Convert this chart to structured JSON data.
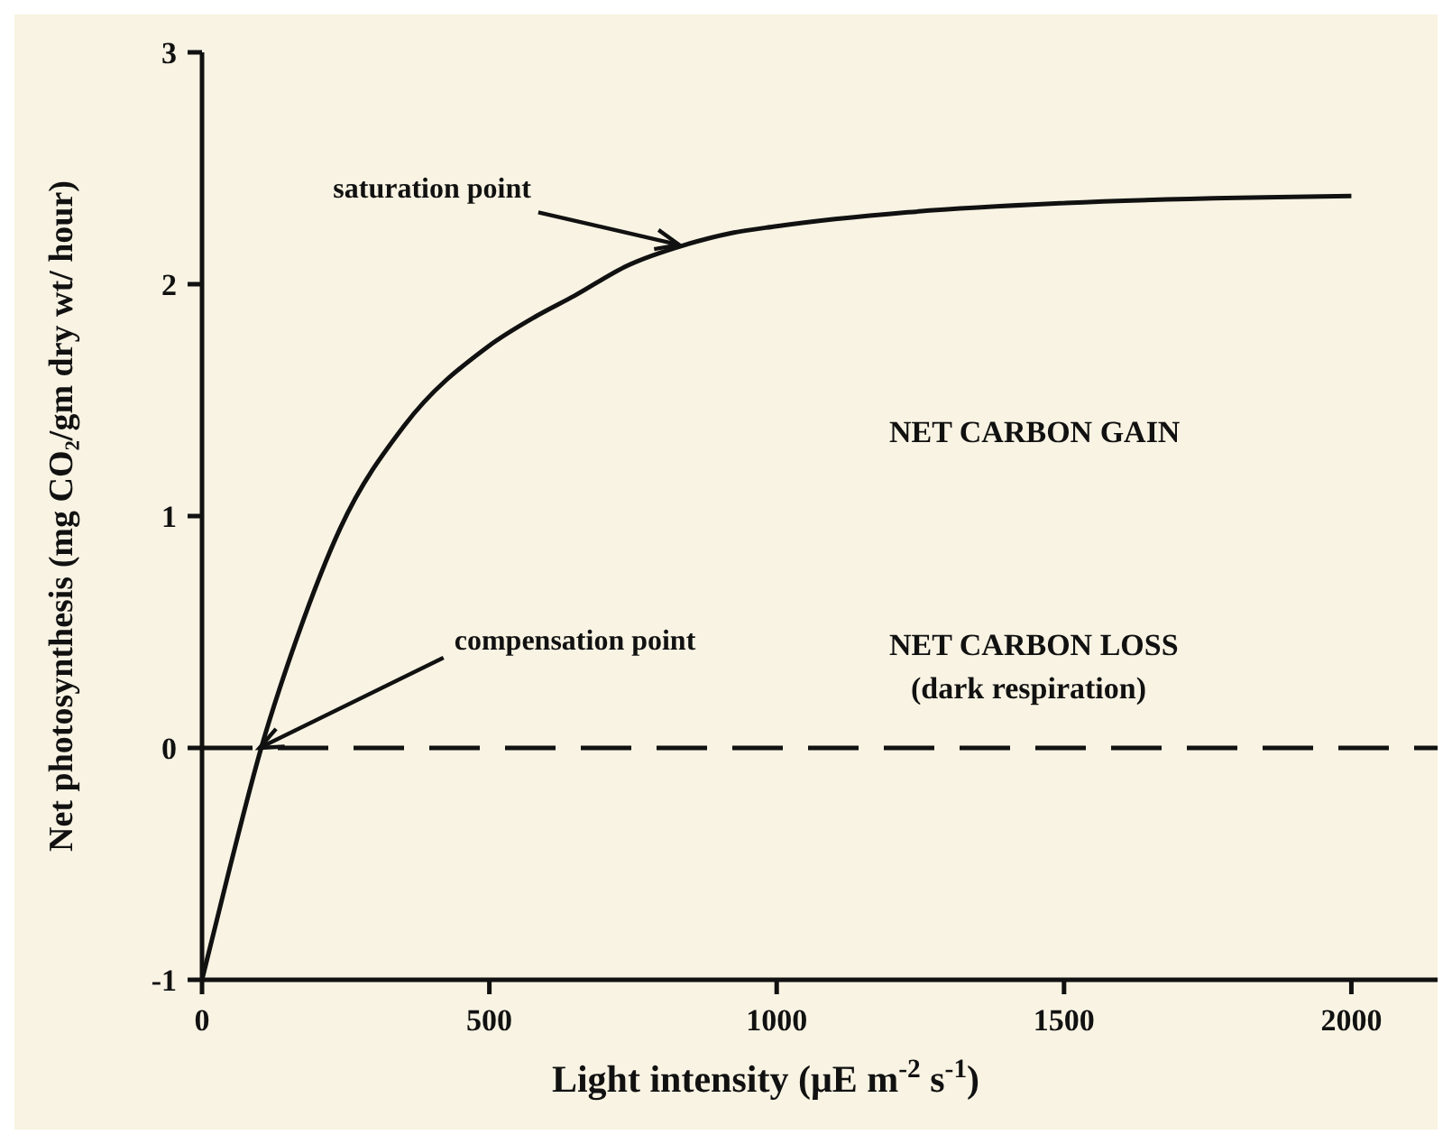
{
  "chart_data": {
    "type": "line",
    "xlabel": "Light intensity (μE m$^{-2}$ s$^{-1}$)",
    "ylabel": "Net photosynthesis (mg CO₂/gm dry wt/ hour)",
    "x": [
      0,
      48,
      103,
      166,
      241,
      352,
      497,
      580,
      648,
      740,
      841,
      920,
      1000,
      1228,
      1503,
      2000
    ],
    "series": [
      {
        "color": "#111111",
        "values": [
          -1,
          -0.52,
          0,
          0.48,
          0.95,
          1.39,
          1.73,
          1.86,
          1.95,
          2.08,
          2.17,
          2.22,
          2.25,
          2.31,
          2.35,
          2.38
        ]
      }
    ],
    "xlim": [
      0,
      2150
    ],
    "xticks": [
      0,
      500,
      1000,
      1500,
      2000
    ],
    "ylim": [
      -1,
      3
    ],
    "yticks": [
      -1,
      0,
      1,
      2,
      3
    ],
    "ref_lines": [
      {
        "axis": "y",
        "value": 0,
        "line_style": "dashed",
        "color": "#111111"
      }
    ],
    "annotations": [
      {
        "text": "saturation point",
        "x": 830,
        "y": 2.17
      },
      {
        "text": "compensation point",
        "x": 100,
        "y": 0
      },
      "NET CARBON GAIN",
      "NET CARBON LOSS",
      "(dark respiration)"
    ],
    "grid": false,
    "marker": "none",
    "line_style": "solid"
  }
}
